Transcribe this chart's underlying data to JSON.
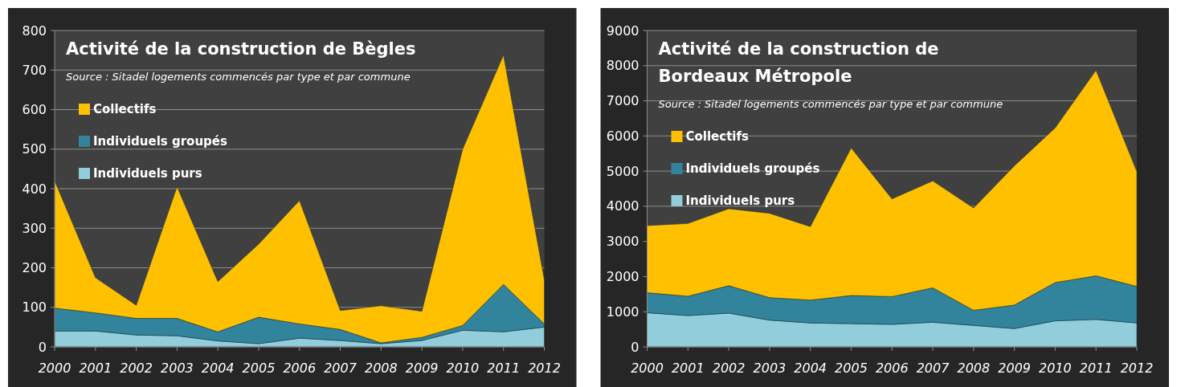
{
  "chart_data": [
    {
      "type": "area",
      "stacked": true,
      "title": "Activité de la construction de Bègles",
      "annotations": [
        "Source : Sitadel logements commencés par type et par  commune"
      ],
      "categories": [
        "2000",
        "2001",
        "2002",
        "2003",
        "2004",
        "2005",
        "2006",
        "2007",
        "2008",
        "2009",
        "2010",
        "2011",
        "2012"
      ],
      "ylim": [
        0,
        800
      ],
      "yticks": [
        0,
        100,
        200,
        300,
        400,
        500,
        600,
        700,
        800
      ],
      "grid": "y",
      "legend": "left",
      "series": [
        {
          "name": "Individuels purs",
          "color": "#92cddc",
          "values": [
            40,
            40,
            30,
            28,
            15,
            8,
            22,
            16,
            8,
            16,
            42,
            38,
            50
          ]
        },
        {
          "name": "Individuels groupés",
          "color": "#31849b",
          "values": [
            58,
            46,
            42,
            44,
            23,
            67,
            36,
            28,
            2,
            8,
            12,
            120,
            8
          ]
        },
        {
          "name": "Collectifs",
          "color": "#ffc000",
          "values": [
            322,
            89,
            33,
            333,
            127,
            185,
            312,
            48,
            94,
            66,
            446,
            580,
            112
          ]
        }
      ]
    },
    {
      "type": "area",
      "stacked": true,
      "title": "Activité de la construction de Bordeaux Métropole",
      "annotations": [
        "Source : Sitadel logements commencés par type et par  commune"
      ],
      "categories": [
        "2000",
        "2001",
        "2002",
        "2003",
        "2004",
        "2005",
        "2006",
        "2007",
        "2008",
        "2009",
        "2010",
        "2011",
        "2012"
      ],
      "ylim": [
        0,
        9000
      ],
      "yticks": [
        0,
        1000,
        2000,
        3000,
        4000,
        5000,
        6000,
        7000,
        8000,
        9000
      ],
      "grid": "y",
      "legend": "left",
      "series": [
        {
          "name": "Individuels purs",
          "color": "#92cddc",
          "values": [
            970,
            890,
            960,
            760,
            680,
            660,
            640,
            700,
            610,
            520,
            740,
            780,
            680
          ]
        },
        {
          "name": "Individuels groupés",
          "color": "#31849b",
          "values": [
            570,
            550,
            780,
            640,
            650,
            800,
            790,
            980,
            430,
            670,
            1090,
            1240,
            1040
          ]
        },
        {
          "name": "Collectifs",
          "color": "#ffc000",
          "values": [
            1910,
            2070,
            2190,
            2400,
            2090,
            4200,
            2780,
            3040,
            2910,
            3960,
            4400,
            5850,
            3270
          ]
        }
      ]
    }
  ]
}
